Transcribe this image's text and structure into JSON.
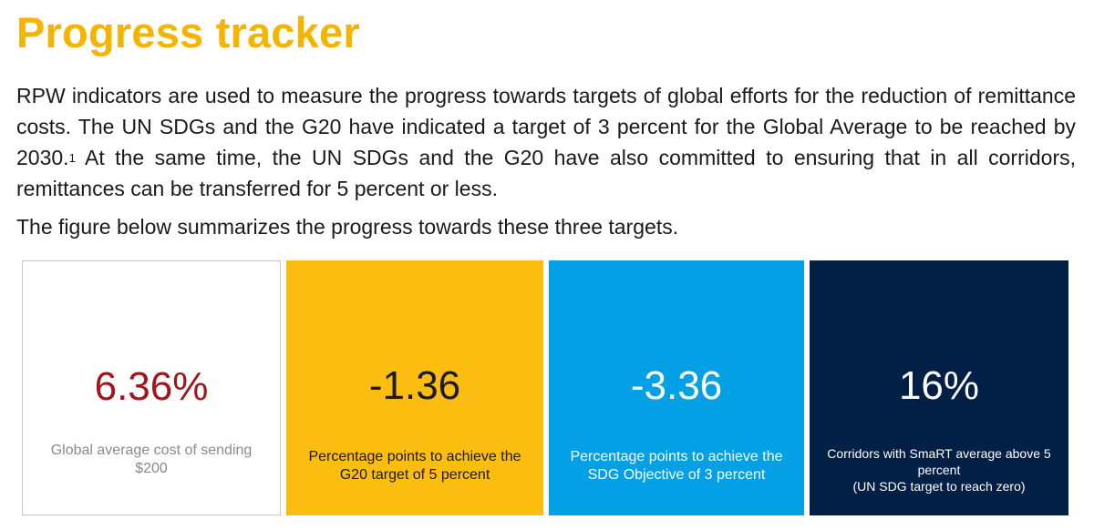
{
  "title": "Progress tracker",
  "intro": {
    "text_before_note": "RPW indicators are used to measure the progress towards targets of global efforts for the reduction of remittance costs. The UN SDGs and the G20 have indicated a target of 3 percent for the Global Average to be reached by 2030.",
    "footnote_marker": "1",
    "text_after_note": " At the same time, the UN SDGs and the G20 have also committed to ensuring that in all corridors, remittances can be transferred for 5 percent or less."
  },
  "summary": "The figure below summarizes the progress towards these three targets.",
  "cards": [
    {
      "value": "6.36%",
      "desc_line1": "Global average cost of sending",
      "desc_line2": "$200",
      "colors": {
        "background": "#ffffff",
        "value": "#a3151b",
        "text": "#8a8a8a"
      }
    },
    {
      "value": "-1.36",
      "desc_line1": "Percentage points to achieve the",
      "desc_line2": "G20 target of 5 percent",
      "colors": {
        "background": "#fbbd0f",
        "value": "#1a1a1a",
        "text": "#1a1a1a"
      }
    },
    {
      "value": "-3.36",
      "desc_line1": "Percentage points to achieve the",
      "desc_line2": "SDG Objective of 3 percent",
      "colors": {
        "background": "#03a0e6",
        "value": "#ffffff",
        "text": "#ffffff"
      }
    },
    {
      "value": "16%",
      "desc_line1": "Corridors with SmaRT average above 5",
      "desc_line2": "percent",
      "desc_line3": "(UN SDG target to reach zero)",
      "colors": {
        "background": "#021f45",
        "value": "#ffffff",
        "text": "#ffffff"
      }
    }
  ],
  "colors": {
    "title": "#f5b400"
  }
}
